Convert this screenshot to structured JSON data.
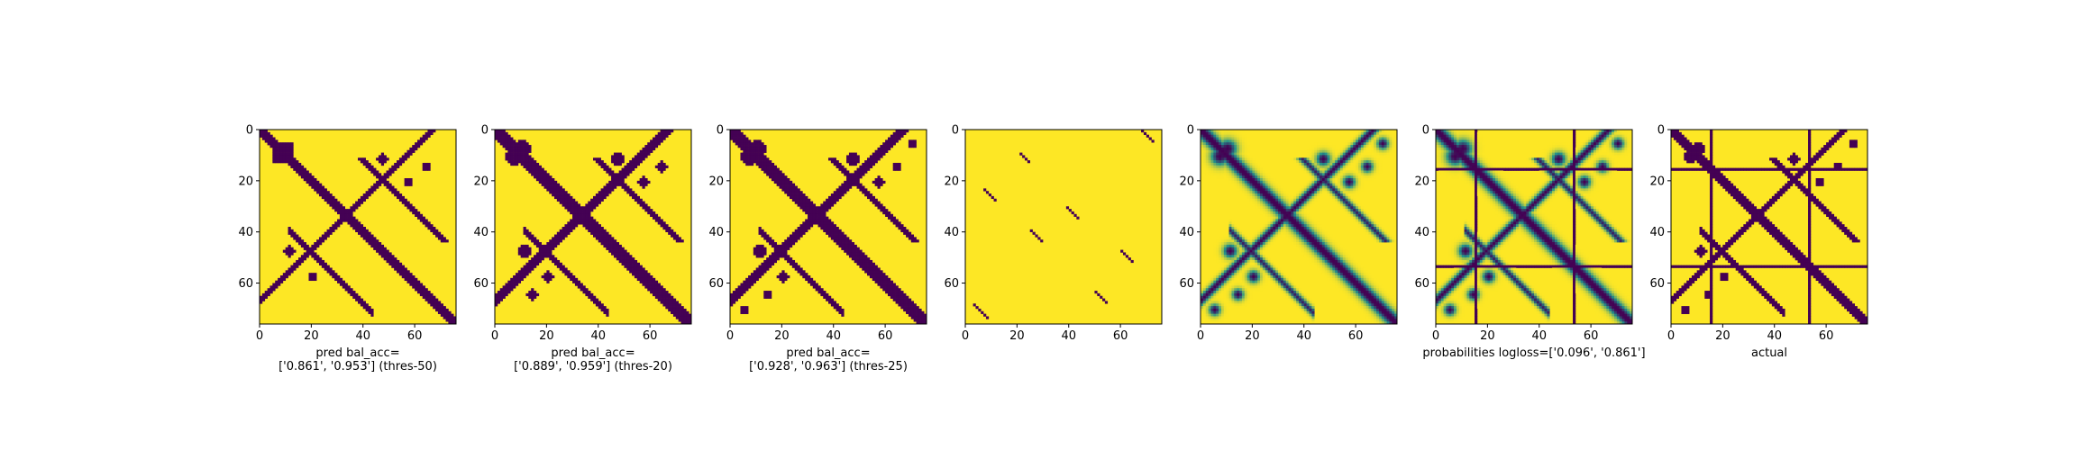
{
  "figure": {
    "background": "#ffffff",
    "colormap": "viridis",
    "colors": {
      "low": "#440154",
      "mid": "#21918c",
      "high": "#fde725"
    }
  },
  "chart_data": [
    {
      "type": "heatmap",
      "kind": "binary-prediction",
      "title": "",
      "xlabel_lines": [
        "pred bal_acc=",
        "['0.861', '0.953'] (thres-50)"
      ],
      "ylabel": "",
      "xlim": [
        0,
        76
      ],
      "ylim": [
        76,
        0
      ],
      "xticks": [
        0,
        20,
        40,
        60
      ],
      "yticks": [
        0,
        20,
        40,
        60
      ],
      "threshold_percentile": 50,
      "bal_acc": [
        0.861,
        0.953
      ],
      "features": {
        "diag_width": 2.2,
        "main_diag": true,
        "crossing_arm": true,
        "parallel_strip": true,
        "blobs": 7,
        "stripe_rows": [],
        "stripe_cols": []
      }
    },
    {
      "type": "heatmap",
      "kind": "binary-prediction",
      "title": "",
      "xlabel_lines": [
        "pred bal_acc=",
        "['0.889', '0.959'] (thres-20)"
      ],
      "ylabel": "",
      "xlim": [
        0,
        76
      ],
      "ylim": [
        76,
        0
      ],
      "xticks": [
        0,
        20,
        40,
        60
      ],
      "yticks": [
        0,
        20,
        40,
        60
      ],
      "threshold_percentile": 20,
      "bal_acc": [
        0.889,
        0.959
      ],
      "features": {
        "diag_width": 2.4,
        "main_diag": true,
        "crossing_arm": true,
        "parallel_strip": true,
        "blobs": 8,
        "stripe_rows": [],
        "stripe_cols": []
      }
    },
    {
      "type": "heatmap",
      "kind": "binary-prediction",
      "title": "",
      "xlabel_lines": [
        "pred bal_acc=",
        "['0.928', '0.963'] (thres-25)"
      ],
      "ylabel": "",
      "xlim": [
        0,
        76
      ],
      "ylim": [
        76,
        0
      ],
      "xticks": [
        0,
        20,
        40,
        60
      ],
      "yticks": [
        0,
        20,
        40,
        60
      ],
      "threshold_percentile": 25,
      "bal_acc": [
        0.928,
        0.963
      ],
      "features": {
        "diag_width": 2.8,
        "main_diag": true,
        "crossing_arm": true,
        "parallel_strip": true,
        "blobs": 10,
        "stripe_rows": [],
        "stripe_cols": []
      }
    },
    {
      "type": "heatmap",
      "kind": "sparse-prediction",
      "title": "",
      "xlabel_lines": [],
      "ylabel": "",
      "xlim": [
        0,
        76
      ],
      "ylim": [
        76,
        0
      ],
      "xticks": [
        0,
        20,
        40,
        60
      ],
      "yticks": [
        0,
        20,
        40,
        60
      ],
      "segments": [
        {
          "r0": 0,
          "c0": 68,
          "len": 5
        },
        {
          "r0": 9,
          "c0": 21,
          "len": 4
        },
        {
          "r0": 23,
          "c0": 7,
          "len": 5
        },
        {
          "r0": 30,
          "c0": 39,
          "len": 5
        },
        {
          "r0": 39,
          "c0": 25,
          "len": 5
        },
        {
          "r0": 47,
          "c0": 60,
          "len": 5
        },
        {
          "r0": 63,
          "c0": 50,
          "len": 5
        },
        {
          "r0": 68,
          "c0": 3,
          "len": 6
        }
      ]
    },
    {
      "type": "heatmap",
      "kind": "continuous-prediction",
      "title": "",
      "xlabel_lines": [],
      "ylabel": "",
      "xlim": [
        0,
        76
      ],
      "ylim": [
        76,
        0
      ],
      "xticks": [
        0,
        20,
        40,
        60
      ],
      "yticks": [
        0,
        20,
        40,
        60
      ],
      "features": {
        "diag_width": 2.6,
        "main_diag": true,
        "crossing_arm": true,
        "parallel_strip": true,
        "blobs": 10,
        "stripe_rows": [],
        "stripe_cols": []
      }
    },
    {
      "type": "heatmap",
      "kind": "probabilities",
      "title": "",
      "xlabel_lines": [
        "probabilities logloss=['0.096', '0.861']"
      ],
      "ylabel": "",
      "xlim": [
        0,
        76
      ],
      "ylim": [
        76,
        0
      ],
      "xticks": [
        0,
        20,
        40,
        60
      ],
      "yticks": [
        0,
        20,
        40,
        60
      ],
      "logloss": [
        0.096,
        0.861
      ],
      "features": {
        "diag_width": 2.6,
        "main_diag": true,
        "crossing_arm": true,
        "parallel_strip": true,
        "blobs": 10,
        "stripe_rows": [
          15,
          53
        ],
        "stripe_cols": [
          15,
          53
        ]
      }
    },
    {
      "type": "heatmap",
      "kind": "actual",
      "title": "",
      "xlabel_lines": [
        "actual"
      ],
      "ylabel": "",
      "xlim": [
        0,
        76
      ],
      "ylim": [
        76,
        0
      ],
      "xticks": [
        0,
        20,
        40,
        60
      ],
      "yticks": [
        0,
        20,
        40,
        60
      ],
      "features": {
        "diag_width": 2.2,
        "main_diag": true,
        "crossing_arm": true,
        "parallel_strip": true,
        "blobs": 10,
        "stripe_rows": [
          15,
          53
        ],
        "stripe_cols": [
          15,
          53
        ]
      }
    }
  ]
}
